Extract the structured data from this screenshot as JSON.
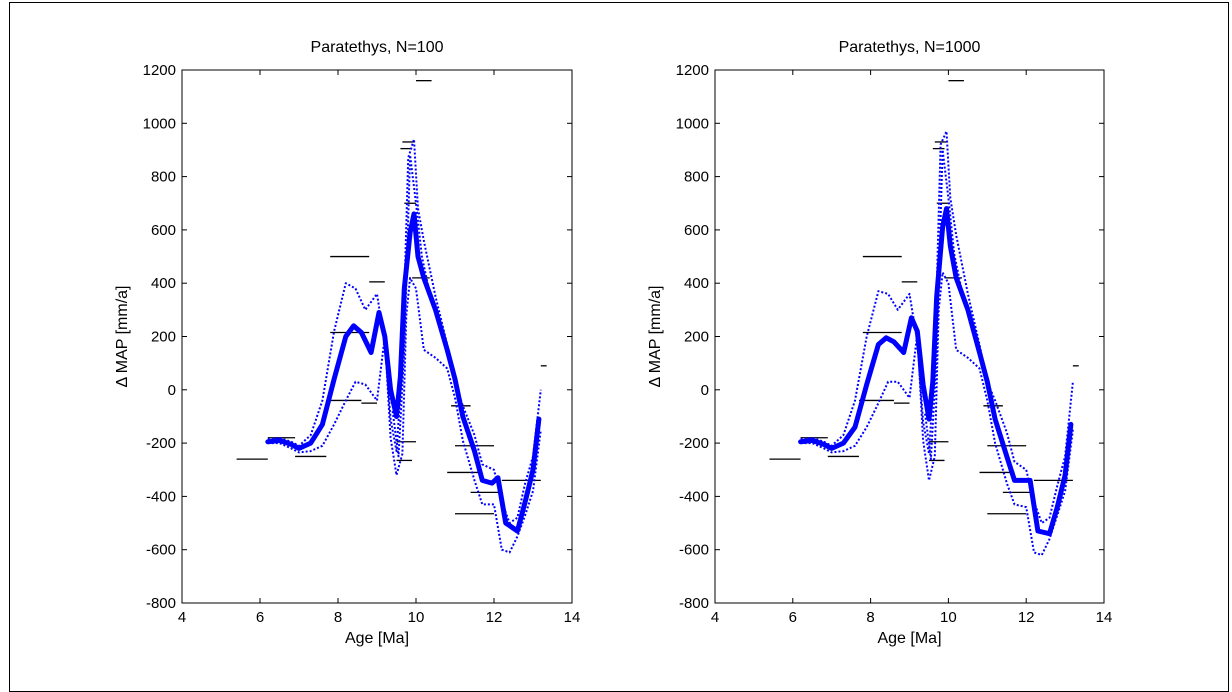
{
  "figure": {
    "background": "#ffffff",
    "line_color": "#0000ff",
    "marker_color": "#000000"
  },
  "chart_data": [
    {
      "type": "line",
      "title": "Paratethys, N=100",
      "xlabel": "Age [Ma]",
      "ylabel": "Δ MAP [mm/a]",
      "xlim": [
        4,
        14
      ],
      "ylim": [
        -800,
        1200
      ],
      "xticks": [
        4,
        6,
        8,
        10,
        12,
        14
      ],
      "yticks": [
        -800,
        -600,
        -400,
        -200,
        0,
        200,
        400,
        600,
        800,
        1000,
        1200
      ],
      "grid": false,
      "series": [
        {
          "role": "mean",
          "style": "thick-solid",
          "x": [
            6.2,
            6.5,
            6.8,
            7.0,
            7.3,
            7.6,
            7.9,
            8.2,
            8.4,
            8.6,
            8.85,
            9.05,
            9.2,
            9.35,
            9.5,
            9.6,
            9.7,
            9.85,
            9.95,
            10.05,
            10.2,
            10.5,
            10.8,
            11.0,
            11.2,
            11.5,
            11.7,
            11.95,
            12.1,
            12.3,
            12.6,
            12.8,
            13.0,
            13.15
          ],
          "y": [
            -195,
            -190,
            -205,
            -220,
            -200,
            -130,
            40,
            200,
            240,
            215,
            140,
            290,
            200,
            0,
            -100,
            50,
            380,
            590,
            660,
            500,
            420,
            300,
            150,
            40,
            -100,
            -230,
            -340,
            -350,
            -330,
            -500,
            -530,
            -420,
            -300,
            -110
          ]
        },
        {
          "role": "upper",
          "style": "dotted",
          "x": [
            6.2,
            6.5,
            6.8,
            7.0,
            7.3,
            7.6,
            7.9,
            8.2,
            8.45,
            8.7,
            9.0,
            9.2,
            9.35,
            9.5,
            9.65,
            9.8,
            9.95,
            10.05,
            10.2,
            10.5,
            10.8,
            11.0,
            11.2,
            11.5,
            11.7,
            12.0,
            12.2,
            12.4,
            12.6,
            12.8,
            13.0,
            13.2
          ],
          "y": [
            -185,
            -180,
            -195,
            -210,
            -170,
            -40,
            220,
            400,
            380,
            300,
            360,
            170,
            -110,
            -230,
            100,
            870,
            940,
            680,
            560,
            350,
            170,
            30,
            -60,
            -170,
            -280,
            -300,
            -420,
            -500,
            -480,
            -350,
            -250,
            0
          ]
        },
        {
          "role": "lower",
          "style": "dotted",
          "x": [
            6.2,
            6.5,
            6.8,
            7.0,
            7.3,
            7.6,
            7.9,
            8.2,
            8.45,
            8.7,
            9.0,
            9.2,
            9.35,
            9.5,
            9.65,
            9.75,
            9.85,
            10.0,
            10.2,
            10.5,
            10.8,
            11.0,
            11.2,
            11.5,
            11.7,
            12.0,
            12.2,
            12.4,
            12.6,
            12.8,
            13.0,
            13.2
          ],
          "y": [
            -200,
            -200,
            -220,
            -235,
            -230,
            -210,
            -130,
            -40,
            30,
            20,
            -40,
            200,
            -180,
            -320,
            -240,
            280,
            420,
            380,
            150,
            120,
            80,
            -30,
            -190,
            -340,
            -430,
            -430,
            -600,
            -610,
            -550,
            -470,
            -380,
            -150
          ]
        },
        {
          "role": "fringe",
          "style": "dotted",
          "x": [
            9.4,
            9.55,
            9.7,
            9.85,
            10.0,
            10.15,
            10.4
          ],
          "y": [
            -80,
            -250,
            150,
            880,
            700,
            500,
            330
          ]
        }
      ],
      "reference_bars": [
        {
          "x": [
            5.4,
            6.2
          ],
          "y": -260
        },
        {
          "x": [
            6.2,
            6.9
          ],
          "y": -180
        },
        {
          "x": [
            6.9,
            7.7
          ],
          "y": -250
        },
        {
          "x": [
            7.7,
            8.6
          ],
          "y": -40
        },
        {
          "x": [
            8.6,
            9.0
          ],
          "y": -50
        },
        {
          "x": [
            7.8,
            8.8
          ],
          "y": 215
        },
        {
          "x": [
            7.8,
            8.8
          ],
          "y": 500
        },
        {
          "x": [
            8.8,
            9.2
          ],
          "y": 405
        },
        {
          "x": [
            9.5,
            10.0
          ],
          "y": -195
        },
        {
          "x": [
            9.5,
            9.9
          ],
          "y": -265
        },
        {
          "x": [
            9.6,
            9.9
          ],
          "y": 905
        },
        {
          "x": [
            9.65,
            9.95
          ],
          "y": 930
        },
        {
          "x": [
            9.7,
            10.0
          ],
          "y": 700
        },
        {
          "x": [
            9.9,
            10.35
          ],
          "y": 420
        },
        {
          "x": [
            10.0,
            10.4
          ],
          "y": 1160
        },
        {
          "x": [
            10.9,
            11.4
          ],
          "y": -60
        },
        {
          "x": [
            10.8,
            11.7
          ],
          "y": -310
        },
        {
          "x": [
            11.0,
            12.0
          ],
          "y": -210
        },
        {
          "x": [
            11.0,
            12.0
          ],
          "y": -465
        },
        {
          "x": [
            11.4,
            12.2
          ],
          "y": -385
        },
        {
          "x": [
            12.2,
            13.2
          ],
          "y": -340
        },
        {
          "x": [
            13.2,
            13.35
          ],
          "y": 90
        }
      ]
    },
    {
      "type": "line",
      "title": "Paratethys, N=1000",
      "xlabel": "Age [Ma]",
      "ylabel": "Δ MAP [mm/a]",
      "xlim": [
        4,
        14
      ],
      "ylim": [
        -800,
        1200
      ],
      "xticks": [
        4,
        6,
        8,
        10,
        12,
        14
      ],
      "yticks": [
        -800,
        -600,
        -400,
        -200,
        0,
        200,
        400,
        600,
        800,
        1000,
        1200
      ],
      "grid": false,
      "series": [
        {
          "role": "mean",
          "style": "thick-solid",
          "x": [
            6.2,
            6.5,
            6.8,
            7.0,
            7.3,
            7.6,
            7.9,
            8.2,
            8.4,
            8.6,
            8.85,
            9.05,
            9.2,
            9.35,
            9.5,
            9.6,
            9.7,
            9.85,
            9.95,
            10.05,
            10.2,
            10.5,
            10.8,
            11.0,
            11.2,
            11.5,
            11.7,
            11.95,
            12.1,
            12.3,
            12.6,
            12.8,
            13.0,
            13.15
          ],
          "y": [
            -195,
            -190,
            -205,
            -220,
            -200,
            -140,
            20,
            170,
            195,
            180,
            140,
            270,
            220,
            20,
            -110,
            30,
            350,
            610,
            680,
            540,
            420,
            300,
            140,
            30,
            -110,
            -250,
            -340,
            -340,
            -340,
            -530,
            -540,
            -440,
            -320,
            -130
          ]
        },
        {
          "role": "upper",
          "style": "dotted",
          "x": [
            6.2,
            6.5,
            6.8,
            7.0,
            7.3,
            7.6,
            7.9,
            8.2,
            8.45,
            8.7,
            9.0,
            9.2,
            9.35,
            9.5,
            9.65,
            9.8,
            9.95,
            10.05,
            10.2,
            10.5,
            10.8,
            11.0,
            11.2,
            11.5,
            11.7,
            12.0,
            12.2,
            12.4,
            12.6,
            12.8,
            13.0,
            13.2
          ],
          "y": [
            -185,
            -180,
            -195,
            -210,
            -170,
            -40,
            200,
            370,
            360,
            300,
            360,
            180,
            -120,
            -240,
            120,
            920,
            970,
            720,
            580,
            360,
            170,
            30,
            -40,
            -160,
            -270,
            -300,
            -420,
            -500,
            -480,
            -360,
            -250,
            30
          ]
        },
        {
          "role": "lower",
          "style": "dotted",
          "x": [
            6.2,
            6.5,
            6.8,
            7.0,
            7.3,
            7.6,
            7.9,
            8.2,
            8.45,
            8.7,
            9.0,
            9.2,
            9.35,
            9.5,
            9.65,
            9.75,
            9.85,
            10.0,
            10.2,
            10.5,
            10.8,
            11.0,
            11.2,
            11.5,
            11.7,
            12.0,
            12.2,
            12.4,
            12.6,
            12.8,
            13.0,
            13.2
          ],
          "y": [
            -200,
            -200,
            -220,
            -235,
            -230,
            -210,
            -140,
            -50,
            30,
            30,
            -30,
            210,
            -190,
            -340,
            -250,
            300,
            440,
            400,
            150,
            120,
            80,
            -40,
            -200,
            -350,
            -430,
            -440,
            -610,
            -620,
            -560,
            -470,
            -380,
            -150
          ]
        },
        {
          "role": "fringe",
          "style": "dotted",
          "x": [
            9.4,
            9.55,
            9.7,
            9.85,
            10.0,
            10.15,
            10.4
          ],
          "y": [
            -90,
            -260,
            140,
            900,
            720,
            510,
            330
          ]
        }
      ],
      "reference_bars": [
        {
          "x": [
            5.4,
            6.2
          ],
          "y": -260
        },
        {
          "x": [
            6.2,
            6.9
          ],
          "y": -180
        },
        {
          "x": [
            6.9,
            7.7
          ],
          "y": -250
        },
        {
          "x": [
            7.7,
            8.6
          ],
          "y": -40
        },
        {
          "x": [
            8.6,
            9.0
          ],
          "y": -50
        },
        {
          "x": [
            7.8,
            8.8
          ],
          "y": 215
        },
        {
          "x": [
            7.8,
            8.8
          ],
          "y": 500
        },
        {
          "x": [
            8.8,
            9.2
          ],
          "y": 405
        },
        {
          "x": [
            9.5,
            10.0
          ],
          "y": -195
        },
        {
          "x": [
            9.5,
            9.9
          ],
          "y": -265
        },
        {
          "x": [
            9.6,
            9.9
          ],
          "y": 905
        },
        {
          "x": [
            9.65,
            9.95
          ],
          "y": 930
        },
        {
          "x": [
            9.7,
            10.0
          ],
          "y": 700
        },
        {
          "x": [
            9.9,
            10.35
          ],
          "y": 420
        },
        {
          "x": [
            10.0,
            10.4
          ],
          "y": 1160
        },
        {
          "x": [
            10.9,
            11.4
          ],
          "y": -60
        },
        {
          "x": [
            10.8,
            11.7
          ],
          "y": -310
        },
        {
          "x": [
            11.0,
            12.0
          ],
          "y": -210
        },
        {
          "x": [
            11.0,
            12.0
          ],
          "y": -465
        },
        {
          "x": [
            11.4,
            12.2
          ],
          "y": -385
        },
        {
          "x": [
            12.2,
            13.2
          ],
          "y": -340
        },
        {
          "x": [
            13.2,
            13.35
          ],
          "y": 90
        }
      ]
    }
  ]
}
